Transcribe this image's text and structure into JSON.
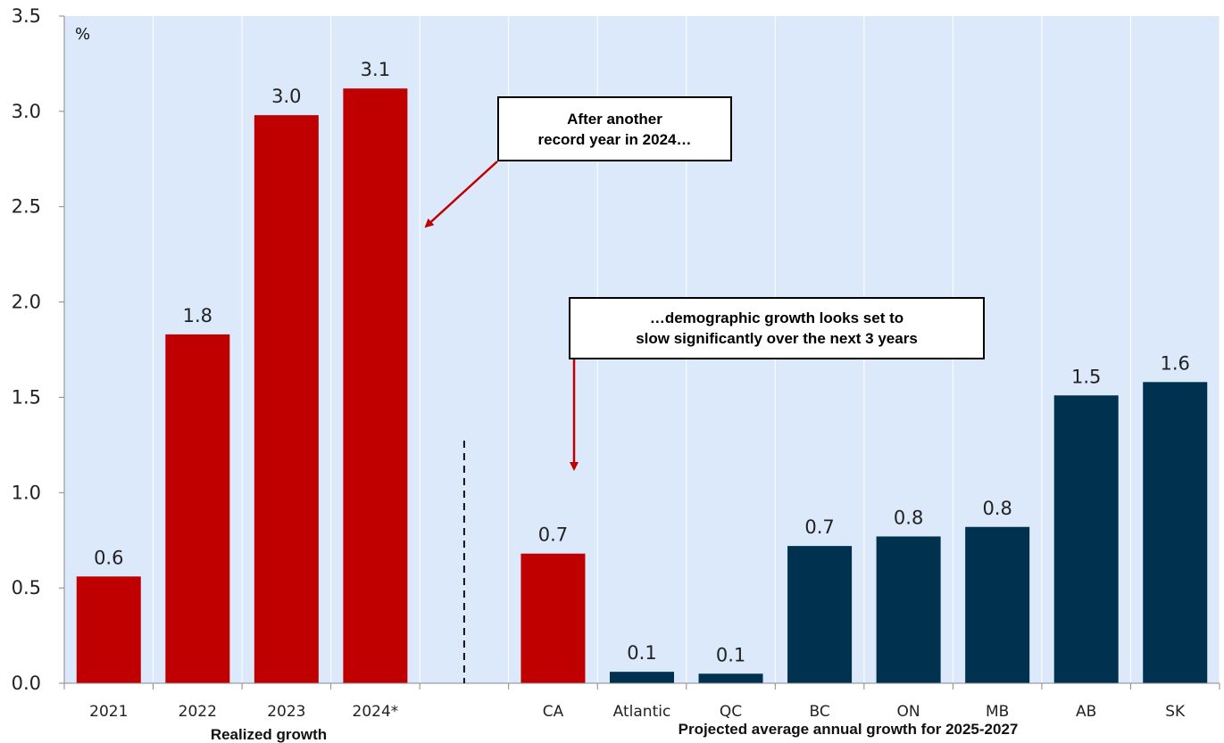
{
  "chart_data": {
    "type": "bar",
    "unit_label": "%",
    "ylim": [
      0,
      3.5
    ],
    "yticks": [
      "0.0",
      "0.5",
      "1.0",
      "1.5",
      "2.0",
      "2.5",
      "3.0",
      "3.5"
    ],
    "grid": true,
    "categories": [
      "2021",
      "2022",
      "2023",
      "2024*",
      "",
      "CA",
      "Atlantic",
      "QC",
      "BC",
      "ON",
      "MB",
      "AB",
      "SK"
    ],
    "values": [
      0.56,
      1.83,
      2.98,
      3.12,
      null,
      0.68,
      0.06,
      0.05,
      0.72,
      0.77,
      0.82,
      1.51,
      1.58
    ],
    "value_labels": [
      "0.6",
      "1.8",
      "3.0",
      "3.1",
      "",
      "0.7",
      "0.1",
      "0.1",
      "0.7",
      "0.8",
      "0.8",
      "1.5",
      "1.6"
    ],
    "bar_colors": [
      "#c00000",
      "#c00000",
      "#c00000",
      "#c00000",
      "",
      "#c00000",
      "#00314f",
      "#00314f",
      "#00314f",
      "#00314f",
      "#00314f",
      "#00314f",
      "#00314f"
    ],
    "groups": [
      {
        "label": "Realized growth"
      },
      {
        "label": "Projected average annual growth for 2025-2027"
      }
    ],
    "annotations": [
      {
        "lines": [
          "After another",
          "record year in 2024…"
        ]
      },
      {
        "lines": [
          "…demographic growth looks set to",
          "slow significantly over the next 3 years"
        ]
      }
    ],
    "colors": {
      "plot_background": "#dbe9fa",
      "realized": "#c00000",
      "projected": "#00314f",
      "arrow": "#c00000"
    }
  }
}
